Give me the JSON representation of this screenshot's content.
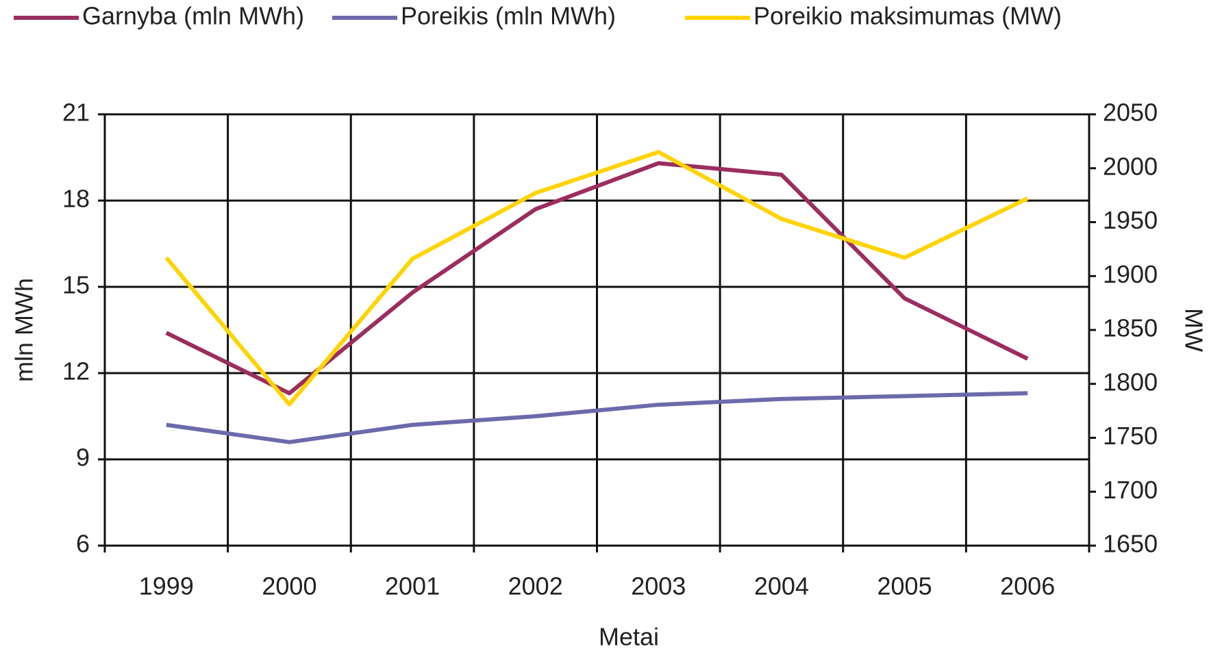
{
  "chart_data": {
    "type": "line",
    "x_label": "Metai",
    "y_label": "mln MWh",
    "y2_label": "MW",
    "categories": [
      "1999",
      "2000",
      "2001",
      "2002",
      "2003",
      "2004",
      "2005",
      "2006"
    ],
    "series": [
      {
        "name": "Garnyba (mln MWh)",
        "color": "#9b2d5f",
        "values": [
          13.4,
          11.3,
          14.8,
          17.7,
          19.3,
          18.9,
          14.6,
          12.5
        ]
      },
      {
        "name": "Poreikis (mln MWh)",
        "color": "#6b6bab",
        "values": [
          10.2,
          9.6,
          10.2,
          10.5,
          10.9,
          11.1,
          11.2,
          11.3
        ]
      },
      {
        "name": "Poreikio maksimumas (MW)",
        "color": "#ffd400",
        "axis": "y2",
        "values": [
          1917,
          1781,
          1916,
          1977,
          2015,
          1953,
          1917,
          1972
        ]
      }
    ],
    "ylim": [
      6,
      21
    ],
    "yticks": [
      6,
      9,
      12,
      15,
      18,
      21
    ],
    "y2lim": [
      1650,
      2050
    ],
    "y2ticks": [
      1650,
      1700,
      1750,
      1800,
      1850,
      1900,
      1950,
      2000,
      2050
    ],
    "grid": true,
    "legend": "top"
  }
}
